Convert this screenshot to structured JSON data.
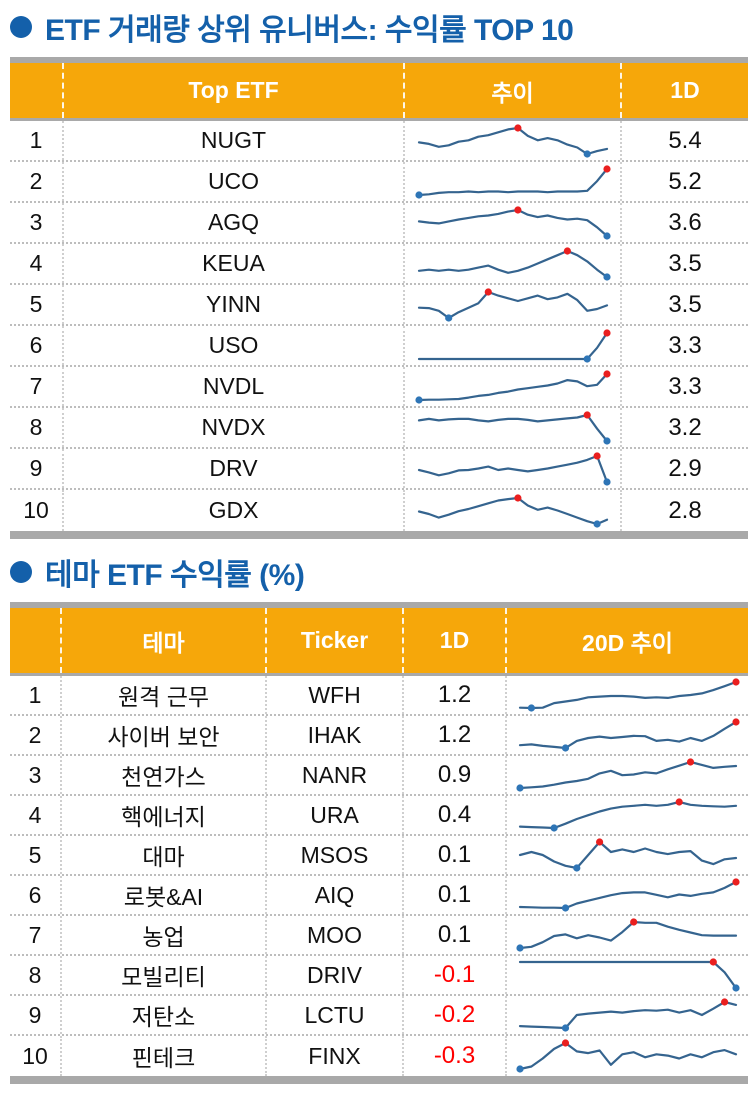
{
  "colors": {
    "title_blue": "#1460AA",
    "header_orange": "#F6A70A",
    "bar_gray": "#A9A9A9",
    "negative_red": "#FF0000",
    "spark_line": "#35648F",
    "spark_high": "#EA1F1F",
    "spark_low": "#2E75B6"
  },
  "section1": {
    "title": "ETF 거래량 상위 유니버스: 수익률 TOP 10",
    "columns": {
      "etf": "Top ETF",
      "trend": "추이",
      "oneday": "1D"
    },
    "rows": [
      {
        "rank": "1",
        "name": "NUGT",
        "oneday": "5.4",
        "negative": false,
        "spark": {
          "v": [
            52,
            48,
            40,
            44,
            54,
            58,
            68,
            72,
            80,
            88,
            92,
            70,
            58,
            64,
            58,
            46,
            38,
            20,
            28,
            34
          ],
          "hi": 10,
          "lo": 17
        }
      },
      {
        "rank": "2",
        "name": "UCO",
        "oneday": "5.2",
        "negative": false,
        "spark": {
          "v": [
            20,
            22,
            26,
            28,
            28,
            30,
            28,
            30,
            30,
            28,
            30,
            30,
            30,
            28,
            30,
            30,
            30,
            32,
            60,
            95
          ],
          "hi": 19,
          "lo": 0
        }
      },
      {
        "rank": "3",
        "name": "AGQ",
        "oneday": "3.6",
        "negative": false,
        "spark": {
          "v": [
            55,
            52,
            50,
            55,
            60,
            64,
            68,
            70,
            74,
            80,
            84,
            72,
            66,
            70,
            64,
            60,
            62,
            58,
            40,
            18
          ],
          "hi": 10,
          "lo": 19
        }
      },
      {
        "rank": "4",
        "name": "KEUA",
        "oneday": "3.5",
        "negative": false,
        "spark": {
          "v": [
            50,
            52,
            50,
            52,
            50,
            52,
            56,
            60,
            52,
            46,
            50,
            56,
            64,
            72,
            80,
            88,
            80,
            68,
            52,
            38
          ],
          "hi": 15,
          "lo": 19
        }
      },
      {
        "rank": "5",
        "name": "YINN",
        "oneday": "3.5",
        "negative": false,
        "spark": {
          "v": [
            45,
            44,
            38,
            22,
            35,
            45,
            55,
            80,
            72,
            66,
            60,
            66,
            72,
            64,
            68,
            76,
            62,
            38,
            42,
            50
          ],
          "hi": 7,
          "lo": 3
        }
      },
      {
        "rank": "6",
        "name": "USO",
        "oneday": "3.3",
        "negative": false,
        "spark": {
          "v": [
            30,
            30,
            30,
            30,
            30,
            30,
            30,
            30,
            30,
            30,
            30,
            30,
            30,
            30,
            30,
            30,
            30,
            30,
            58,
            95
          ],
          "hi": 19,
          "lo": 17
        }
      },
      {
        "rank": "7",
        "name": "NVDL",
        "oneday": "3.3",
        "negative": false,
        "spark": {
          "v": [
            15,
            16,
            16,
            17,
            18,
            22,
            27,
            30,
            36,
            40,
            46,
            50,
            54,
            58,
            64,
            74,
            70,
            56,
            60,
            92
          ],
          "hi": 19,
          "lo": 0
        }
      },
      {
        "rank": "8",
        "name": "NVDX",
        "oneday": "3.2",
        "negative": false,
        "spark": {
          "v": [
            62,
            65,
            62,
            64,
            65,
            65,
            62,
            60,
            63,
            65,
            65,
            63,
            60,
            62,
            64,
            66,
            68,
            73,
            45,
            20
          ],
          "hi": 17,
          "lo": 19
        }
      },
      {
        "rank": "9",
        "name": "DRV",
        "oneday": "2.9",
        "negative": false,
        "spark": {
          "v": [
            55,
            50,
            44,
            48,
            54,
            55,
            58,
            62,
            55,
            58,
            55,
            52,
            55,
            58,
            62,
            66,
            70,
            76,
            84,
            30
          ],
          "hi": 18,
          "lo": 19
        }
      },
      {
        "rank": "10",
        "name": "GDX",
        "oneday": "2.8",
        "negative": false,
        "spark": {
          "v": [
            55,
            48,
            38,
            46,
            56,
            62,
            70,
            78,
            86,
            90,
            93,
            72,
            60,
            66,
            58,
            48,
            38,
            28,
            20,
            32
          ],
          "hi": 10,
          "lo": 18
        }
      }
    ]
  },
  "section2": {
    "title": "테마 ETF 수익률 (%)",
    "columns": {
      "theme": "테마",
      "ticker": "Ticker",
      "oneday": "1D",
      "trend": "20D 추이"
    },
    "rows": [
      {
        "rank": "1",
        "theme": "원격 근무",
        "ticker": "WFH",
        "oneday": "1.2",
        "negative": false,
        "spark": {
          "v": [
            16,
            15,
            16,
            30,
            35,
            40,
            48,
            50,
            52,
            52,
            50,
            46,
            48,
            46,
            52,
            55,
            60,
            70,
            82,
            95
          ],
          "hi": 19,
          "lo": 1
        }
      },
      {
        "rank": "2",
        "theme": "사이버 보안",
        "ticker": "IHAK",
        "oneday": "1.2",
        "negative": false,
        "spark": {
          "v": [
            30,
            32,
            28,
            25,
            22,
            42,
            50,
            54,
            50,
            53,
            56,
            55,
            42,
            45,
            40,
            50,
            42,
            56,
            76,
            95
          ],
          "hi": 19,
          "lo": 4
        }
      },
      {
        "rank": "3",
        "theme": "천연가스",
        "ticker": "NANR",
        "oneday": "0.9",
        "negative": false,
        "spark": {
          "v": [
            15,
            17,
            19,
            24,
            30,
            34,
            40,
            55,
            62,
            50,
            52,
            58,
            55,
            66,
            76,
            86,
            78,
            70,
            73,
            75
          ],
          "hi": 15,
          "lo": 0
        }
      },
      {
        "rank": "4",
        "theme": "핵에너지",
        "ticker": "URA",
        "oneday": "0.4",
        "negative": false,
        "spark": {
          "v": [
            22,
            21,
            20,
            19,
            28,
            38,
            46,
            54,
            60,
            64,
            66,
            68,
            66,
            68,
            74,
            68,
            66,
            65,
            64,
            66
          ],
          "hi": 14,
          "lo": 3
        }
      },
      {
        "rank": "5",
        "theme": "대마",
        "ticker": "MSOS",
        "oneday": "0.1",
        "negative": false,
        "spark": {
          "v": [
            55,
            62,
            55,
            40,
            30,
            25,
            55,
            85,
            62,
            68,
            62,
            70,
            62,
            57,
            62,
            64,
            42,
            34,
            45,
            48
          ],
          "hi": 7,
          "lo": 5
        }
      },
      {
        "rank": "6",
        "theme": "로봇&AI",
        "ticker": "AIQ",
        "oneday": "0.1",
        "negative": false,
        "spark": {
          "v": [
            20,
            19,
            18,
            18,
            17,
            30,
            38,
            46,
            54,
            60,
            62,
            62,
            55,
            48,
            56,
            52,
            58,
            62,
            75,
            92
          ],
          "hi": 19,
          "lo": 4
        }
      },
      {
        "rank": "7",
        "theme": "농업",
        "ticker": "MOO",
        "oneday": "0.1",
        "negative": false,
        "spark": {
          "v": [
            15,
            18,
            30,
            46,
            50,
            40,
            48,
            42,
            34,
            56,
            82,
            80,
            80,
            70,
            62,
            55,
            48,
            47,
            47,
            47
          ],
          "hi": 10,
          "lo": 0
        }
      },
      {
        "rank": "8",
        "theme": "모빌리티",
        "ticker": "DRIV",
        "oneday": "-0.1",
        "negative": true,
        "spark": {
          "v": [
            75,
            75,
            75,
            75,
            75,
            75,
            75,
            75,
            75,
            75,
            75,
            75,
            75,
            75,
            75,
            75,
            75,
            75,
            58,
            32
          ],
          "hi": 17,
          "lo": 19
        }
      },
      {
        "rank": "9",
        "theme": "저탄소",
        "ticker": "LCTU",
        "oneday": "-0.2",
        "negative": true,
        "spark": {
          "v": [
            22,
            21,
            20,
            19,
            18,
            45,
            48,
            50,
            52,
            50,
            53,
            55,
            54,
            56,
            50,
            55,
            45,
            58,
            72,
            66
          ],
          "hi": 18,
          "lo": 4
        }
      },
      {
        "rank": "10",
        "theme": "핀테크",
        "ticker": "FINX",
        "oneday": "-0.3",
        "negative": true,
        "spark": {
          "v": [
            20,
            26,
            45,
            68,
            82,
            62,
            58,
            64,
            30,
            55,
            60,
            48,
            55,
            52,
            45,
            55,
            48,
            60,
            65,
            55
          ],
          "hi": 4,
          "lo": 0
        }
      }
    ]
  }
}
